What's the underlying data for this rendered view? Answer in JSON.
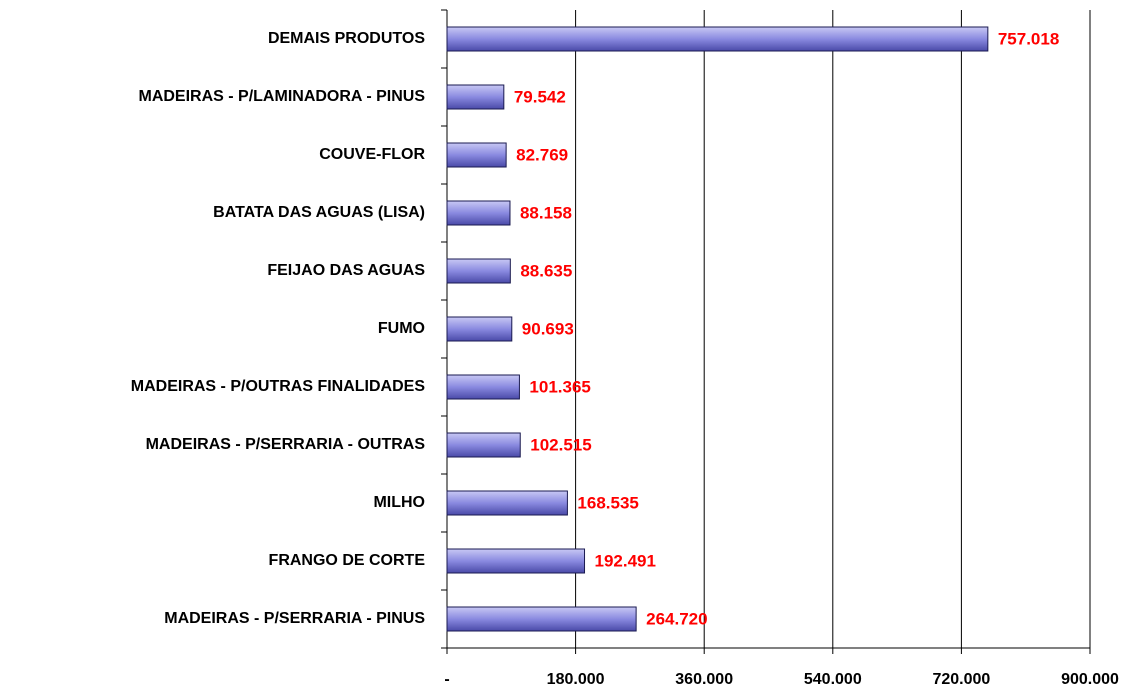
{
  "chart_data": {
    "type": "bar",
    "orientation": "horizontal",
    "categories": [
      "DEMAIS PRODUTOS",
      "MADEIRAS - P/LAMINADORA - PINUS",
      "COUVE-FLOR",
      "BATATA DAS AGUAS (LISA)",
      "FEIJAO DAS AGUAS",
      "FUMO",
      "MADEIRAS - P/OUTRAS FINALIDADES",
      "MADEIRAS - P/SERRARIA - OUTRAS",
      "MILHO",
      "FRANGO DE CORTE",
      "MADEIRAS - P/SERRARIA - PINUS"
    ],
    "values": [
      757018,
      79542,
      82769,
      88158,
      88635,
      90693,
      101365,
      102515,
      168535,
      192491,
      264720
    ],
    "value_labels": [
      "757.018",
      "79.542",
      "82.769",
      "88.158",
      "88.635",
      "90.693",
      "101.365",
      "102.515",
      "168.535",
      "192.491",
      "264.720"
    ],
    "color": "#7b7bd6",
    "xlim": [
      0,
      900000
    ],
    "xticks": [
      {
        "value": 0,
        "label": "-"
      },
      {
        "value": 180000,
        "label": "180.000"
      },
      {
        "value": 360000,
        "label": "360.000"
      },
      {
        "value": 540000,
        "label": "540.000"
      },
      {
        "value": 720000,
        "label": "720.000"
      },
      {
        "value": 900000,
        "label": "900.000"
      }
    ],
    "grid": true
  }
}
